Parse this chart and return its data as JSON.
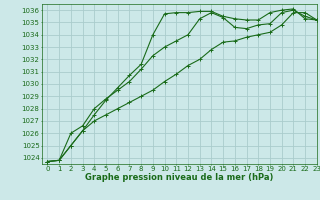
{
  "title": "Graphe pression niveau de la mer (hPa)",
  "bg_color": "#cce8e8",
  "grid_color": "#aacccc",
  "line_color": "#1a6b1a",
  "xlim": [
    -0.5,
    23
  ],
  "ylim": [
    1023.5,
    1036.5
  ],
  "yticks": [
    1024,
    1025,
    1026,
    1027,
    1028,
    1029,
    1030,
    1031,
    1032,
    1033,
    1034,
    1035,
    1036
  ],
  "xticks": [
    0,
    1,
    2,
    3,
    4,
    5,
    6,
    7,
    8,
    9,
    10,
    11,
    12,
    13,
    14,
    15,
    16,
    17,
    18,
    19,
    20,
    21,
    22,
    23
  ],
  "series": [
    [
      1023.7,
      1023.8,
      1025.0,
      1026.2,
      1027.5,
      1028.7,
      1029.7,
      1030.7,
      1031.6,
      1034.0,
      1035.7,
      1035.8,
      1035.8,
      1035.9,
      1035.9,
      1035.5,
      1035.3,
      1035.2,
      1035.2,
      1035.8,
      1036.0,
      1036.1,
      1035.3,
      1035.2
    ],
    [
      1023.7,
      1023.8,
      1026.0,
      1026.6,
      1028.0,
      1028.8,
      1029.5,
      1030.2,
      1031.2,
      1032.3,
      1033.0,
      1033.5,
      1034.0,
      1035.3,
      1035.8,
      1035.4,
      1034.6,
      1034.5,
      1034.8,
      1034.9,
      1035.8,
      1036.0,
      1035.5,
      1035.2
    ],
    [
      1023.7,
      1023.8,
      1025.0,
      1026.2,
      1027.0,
      1027.5,
      1028.0,
      1028.5,
      1029.0,
      1029.5,
      1030.2,
      1030.8,
      1031.5,
      1032.0,
      1032.8,
      1033.4,
      1033.5,
      1033.8,
      1034.0,
      1034.2,
      1034.8,
      1035.8,
      1035.8,
      1035.2
    ]
  ],
  "ylabel_fontsize": 6,
  "tick_fontsize": 5,
  "line_width": 0.8,
  "marker_size": 3
}
